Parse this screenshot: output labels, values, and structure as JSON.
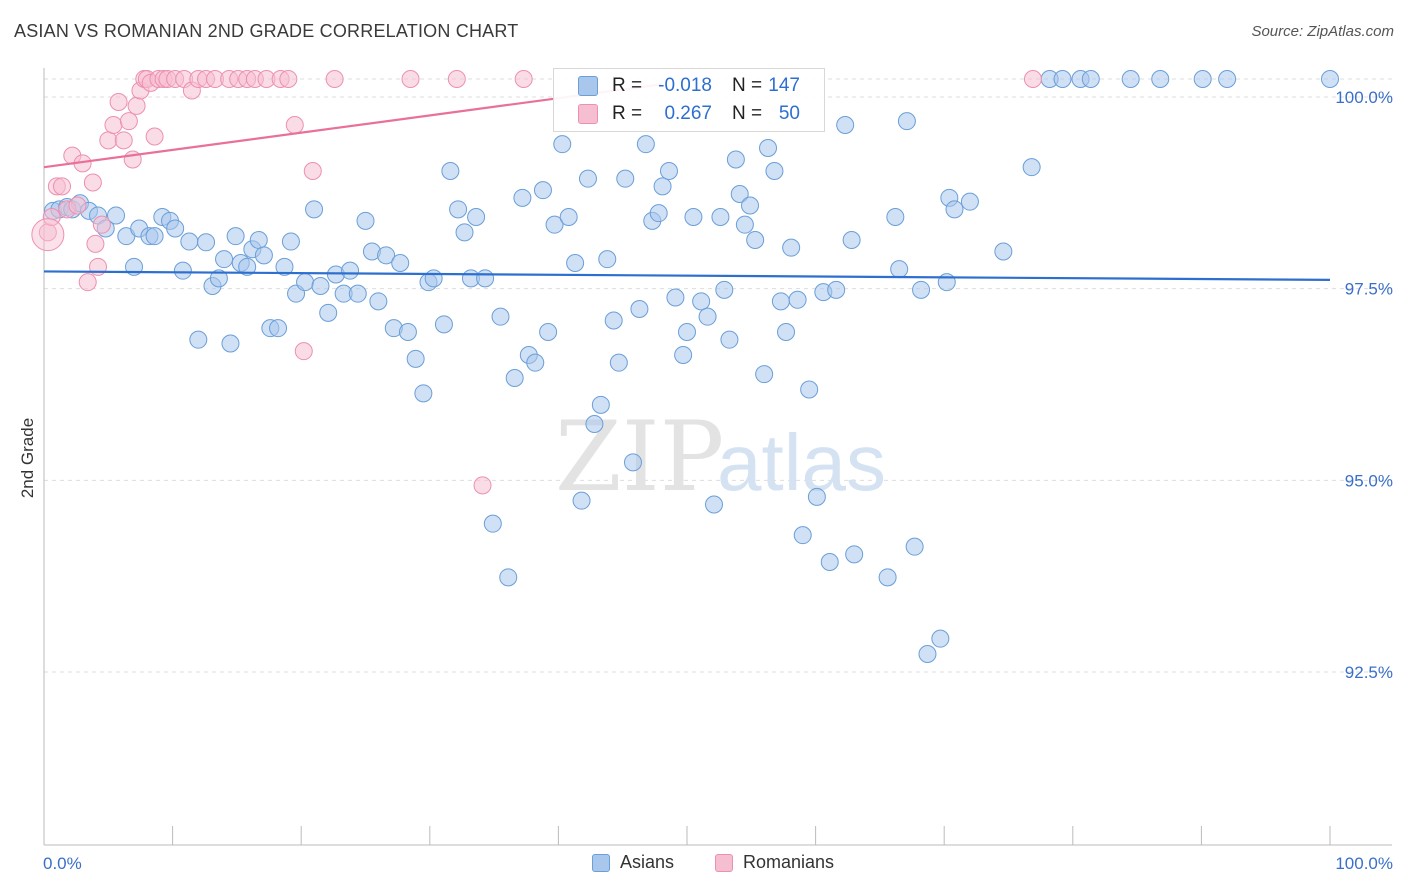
{
  "title": "ASIAN VS ROMANIAN 2ND GRADE CORRELATION CHART",
  "source": "Source: ZipAtlas.com",
  "watermark": {
    "part1": "ZIP",
    "part2": "atlas"
  },
  "legend_inset": {
    "rows": [
      {
        "r_label": "R =",
        "r_value": "-0.018",
        "n_label": "N =",
        "n_value": "147",
        "color": "#6a9fd8"
      },
      {
        "r_label": "R =",
        "r_value": "0.267",
        "n_label": "N =",
        "n_value": "50",
        "color": "#ee8fb0"
      }
    ]
  },
  "legend_bottom": {
    "items": [
      "Asians",
      "Romanians"
    ]
  },
  "colors": {
    "asian_fill": "#a9c6ec",
    "asian_stroke": "#6a9fd8",
    "asian_line": "#2d6fcf",
    "romanian_fill": "#f6bfd1",
    "romanian_stroke": "#ee8fb0",
    "romanian_line": "#e8709a",
    "tick_label": "#3a6fc9",
    "grid": "#dddddd"
  },
  "chart_data": {
    "type": "scatter",
    "title": "ASIAN VS ROMANIAN 2ND GRADE CORRELATION CHART",
    "xlabel": "",
    "ylabel": "2nd Grade",
    "xlim": [
      0,
      100
    ],
    "ylim": [
      90.0,
      100.25
    ],
    "x_tick_labels": [
      "0.0%",
      "100.0%"
    ],
    "y_ticks": [
      100.0,
      97.5,
      95.0,
      92.5
    ],
    "y_tick_labels": [
      "100.0%",
      "97.5%",
      "95.0%",
      "92.5%"
    ],
    "grid": true,
    "series": [
      {
        "name": "Asians",
        "trend": {
          "y_at_0": 97.49,
          "y_at_100": 97.38
        },
        "points": [
          [
            0.7,
            98.28
          ],
          [
            1.2,
            98.3
          ],
          [
            1.8,
            98.33
          ],
          [
            2.2,
            98.3
          ],
          [
            2.8,
            98.38
          ],
          [
            3.5,
            98.28
          ],
          [
            4.2,
            98.22
          ],
          [
            4.8,
            98.05
          ],
          [
            5.6,
            98.22
          ],
          [
            6.4,
            97.95
          ],
          [
            7.0,
            97.55
          ],
          [
            7.4,
            98.05
          ],
          [
            8.2,
            97.95
          ],
          [
            8.6,
            97.95
          ],
          [
            9.2,
            98.2
          ],
          [
            9.8,
            98.15
          ],
          [
            10.2,
            98.05
          ],
          [
            10.8,
            97.5
          ],
          [
            11.3,
            97.88
          ],
          [
            12.0,
            96.6
          ],
          [
            12.6,
            97.87
          ],
          [
            13.1,
            97.3
          ],
          [
            13.6,
            97.4
          ],
          [
            14.0,
            97.65
          ],
          [
            14.5,
            96.55
          ],
          [
            14.9,
            97.95
          ],
          [
            15.3,
            97.6
          ],
          [
            15.8,
            97.55
          ],
          [
            16.2,
            97.78
          ],
          [
            16.7,
            97.9
          ],
          [
            17.1,
            97.7
          ],
          [
            17.6,
            96.75
          ],
          [
            18.2,
            96.75
          ],
          [
            18.7,
            97.55
          ],
          [
            19.2,
            97.88
          ],
          [
            19.6,
            97.2
          ],
          [
            20.3,
            97.35
          ],
          [
            21.0,
            98.3
          ],
          [
            21.5,
            97.3
          ],
          [
            22.1,
            96.95
          ],
          [
            22.7,
            97.45
          ],
          [
            23.3,
            97.2
          ],
          [
            23.8,
            97.5
          ],
          [
            24.4,
            97.2
          ],
          [
            25.0,
            98.15
          ],
          [
            25.5,
            97.75
          ],
          [
            26.0,
            97.1
          ],
          [
            26.6,
            97.7
          ],
          [
            27.2,
            96.75
          ],
          [
            27.7,
            97.6
          ],
          [
            28.3,
            96.7
          ],
          [
            28.9,
            96.35
          ],
          [
            29.5,
            95.9
          ],
          [
            29.9,
            97.35
          ],
          [
            30.3,
            97.4
          ],
          [
            31.1,
            96.8
          ],
          [
            31.6,
            98.8
          ],
          [
            32.2,
            98.3
          ],
          [
            32.7,
            98.0
          ],
          [
            33.2,
            97.4
          ],
          [
            33.6,
            98.2
          ],
          [
            34.3,
            97.4
          ],
          [
            34.9,
            94.2
          ],
          [
            35.5,
            96.9
          ],
          [
            36.1,
            93.5
          ],
          [
            36.6,
            96.1
          ],
          [
            37.2,
            98.45
          ],
          [
            37.7,
            96.4
          ],
          [
            38.2,
            96.3
          ],
          [
            38.8,
            98.55
          ],
          [
            39.2,
            96.7
          ],
          [
            39.7,
            98.1
          ],
          [
            40.3,
            99.15
          ],
          [
            40.8,
            98.2
          ],
          [
            41.3,
            97.6
          ],
          [
            41.8,
            94.5
          ],
          [
            42.3,
            98.7
          ],
          [
            42.8,
            95.5
          ],
          [
            43.3,
            95.75
          ],
          [
            43.8,
            97.65
          ],
          [
            44.3,
            96.85
          ],
          [
            44.7,
            96.3
          ],
          [
            45.2,
            98.7
          ],
          [
            45.8,
            95.0
          ],
          [
            46.3,
            97.0
          ],
          [
            46.8,
            99.15
          ],
          [
            47.3,
            98.15
          ],
          [
            47.8,
            98.25
          ],
          [
            48.1,
            98.6
          ],
          [
            48.6,
            98.8
          ],
          [
            49.1,
            97.15
          ],
          [
            49.7,
            96.4
          ],
          [
            50.0,
            96.7
          ],
          [
            50.5,
            98.2
          ],
          [
            51.1,
            97.1
          ],
          [
            51.6,
            96.9
          ],
          [
            52.1,
            94.45
          ],
          [
            52.6,
            98.2
          ],
          [
            52.9,
            97.25
          ],
          [
            53.3,
            96.6
          ],
          [
            53.8,
            98.95
          ],
          [
            54.1,
            98.5
          ],
          [
            54.5,
            98.1
          ],
          [
            54.9,
            98.35
          ],
          [
            55.3,
            97.9
          ],
          [
            56.0,
            96.15
          ],
          [
            56.3,
            99.1
          ],
          [
            56.8,
            98.8
          ],
          [
            57.3,
            97.1
          ],
          [
            57.7,
            96.7
          ],
          [
            58.1,
            97.8
          ],
          [
            58.6,
            97.12
          ],
          [
            59.0,
            94.05
          ],
          [
            59.5,
            95.95
          ],
          [
            60.1,
            94.55
          ],
          [
            60.6,
            97.22
          ],
          [
            61.1,
            93.7
          ],
          [
            61.6,
            97.25
          ],
          [
            62.3,
            99.4
          ],
          [
            62.8,
            97.9
          ],
          [
            63.0,
            93.8
          ],
          [
            65.6,
            93.5
          ],
          [
            66.2,
            98.2
          ],
          [
            66.5,
            97.52
          ],
          [
            67.1,
            99.45
          ],
          [
            67.7,
            93.9
          ],
          [
            68.2,
            97.25
          ],
          [
            68.7,
            92.5
          ],
          [
            69.7,
            92.7
          ],
          [
            70.2,
            97.35
          ],
          [
            70.4,
            98.45
          ],
          [
            70.8,
            98.3
          ],
          [
            72.0,
            98.4
          ],
          [
            74.6,
            97.75
          ],
          [
            76.8,
            98.85
          ],
          [
            78.2,
            100.0
          ],
          [
            79.2,
            100.0
          ],
          [
            80.6,
            100.0
          ],
          [
            81.4,
            100.0
          ],
          [
            84.5,
            100.0
          ],
          [
            86.8,
            100.0
          ],
          [
            90.1,
            100.0
          ],
          [
            92.0,
            100.0
          ],
          [
            100.0,
            100.0
          ]
        ]
      },
      {
        "name": "Romanians",
        "trend": {
          "y_at_0": 98.85,
          "y_at_100": 101.1
        },
        "points": [
          [
            0.3,
            98.0
          ],
          [
            0.6,
            98.2
          ],
          [
            1.0,
            98.6
          ],
          [
            1.4,
            98.6
          ],
          [
            1.8,
            98.3
          ],
          [
            2.2,
            99.0
          ],
          [
            2.6,
            98.35
          ],
          [
            3.0,
            98.9
          ],
          [
            3.4,
            97.35
          ],
          [
            3.8,
            98.65
          ],
          [
            4.0,
            97.85
          ],
          [
            4.2,
            97.55
          ],
          [
            4.5,
            98.1
          ],
          [
            5.0,
            99.2
          ],
          [
            5.4,
            99.4
          ],
          [
            5.8,
            99.7
          ],
          [
            6.2,
            99.2
          ],
          [
            6.6,
            99.45
          ],
          [
            6.9,
            98.95
          ],
          [
            7.2,
            99.65
          ],
          [
            7.5,
            99.85
          ],
          [
            7.8,
            100.0
          ],
          [
            8.0,
            100.0
          ],
          [
            8.3,
            99.95
          ],
          [
            8.6,
            99.25
          ],
          [
            8.9,
            100.0
          ],
          [
            9.3,
            100.0
          ],
          [
            9.6,
            100.0
          ],
          [
            10.2,
            100.0
          ],
          [
            10.9,
            100.0
          ],
          [
            11.5,
            99.85
          ],
          [
            12.0,
            100.0
          ],
          [
            12.6,
            100.0
          ],
          [
            13.3,
            100.0
          ],
          [
            14.4,
            100.0
          ],
          [
            15.1,
            100.0
          ],
          [
            15.8,
            100.0
          ],
          [
            16.4,
            100.0
          ],
          [
            17.3,
            100.0
          ],
          [
            18.4,
            100.0
          ],
          [
            19.0,
            100.0
          ],
          [
            19.5,
            99.4
          ],
          [
            20.2,
            96.45
          ],
          [
            20.9,
            98.8
          ],
          [
            22.6,
            100.0
          ],
          [
            28.5,
            100.0
          ],
          [
            32.1,
            100.0
          ],
          [
            34.1,
            94.7
          ],
          [
            37.3,
            100.0
          ],
          [
            76.9,
            100.0
          ]
        ]
      }
    ]
  }
}
